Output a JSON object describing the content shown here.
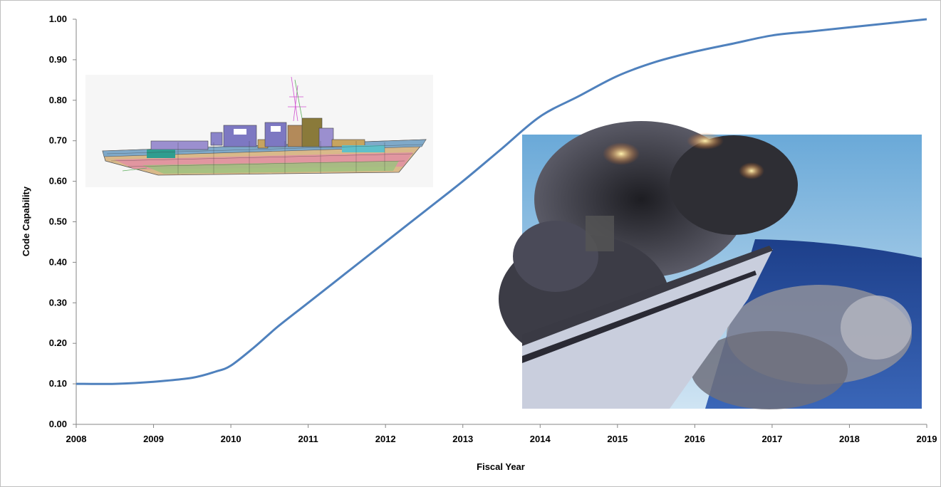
{
  "chart_data": {
    "type": "line",
    "xlabel": "Fiscal Year",
    "ylabel": "Code Capability",
    "xlim": [
      2008,
      2019
    ],
    "ylim": [
      0,
      1
    ],
    "x_ticks": [
      2008,
      2009,
      2010,
      2011,
      2012,
      2013,
      2014,
      2015,
      2016,
      2017,
      2018,
      2019
    ],
    "y_ticks": [
      "0.00",
      "0.10",
      "0.20",
      "0.30",
      "0.40",
      "0.50",
      "0.60",
      "0.70",
      "0.80",
      "0.90",
      "1.00"
    ],
    "grid": false,
    "legend": "none",
    "series": [
      {
        "color": "#4f81bd",
        "x": [
          2008,
          2008.5,
          2009,
          2009.5,
          2009.8,
          2010,
          2010.3,
          2010.6,
          2011,
          2011.5,
          2012,
          2012.5,
          2013,
          2013.5,
          2014,
          2014.5,
          2015,
          2015.5,
          2016,
          2016.5,
          2017,
          2017.5,
          2018,
          2018.5,
          2019
        ],
        "y": [
          0.1,
          0.1,
          0.105,
          0.115,
          0.13,
          0.145,
          0.19,
          0.24,
          0.3,
          0.375,
          0.45,
          0.525,
          0.6,
          0.68,
          0.76,
          0.81,
          0.86,
          0.895,
          0.92,
          0.94,
          0.96,
          0.97,
          0.98,
          0.99,
          1.0
        ]
      }
    ]
  },
  "images": {
    "ship_model": "ship-finite-element-model",
    "explosion_photo": "ship-underwater-explosion-photo"
  }
}
